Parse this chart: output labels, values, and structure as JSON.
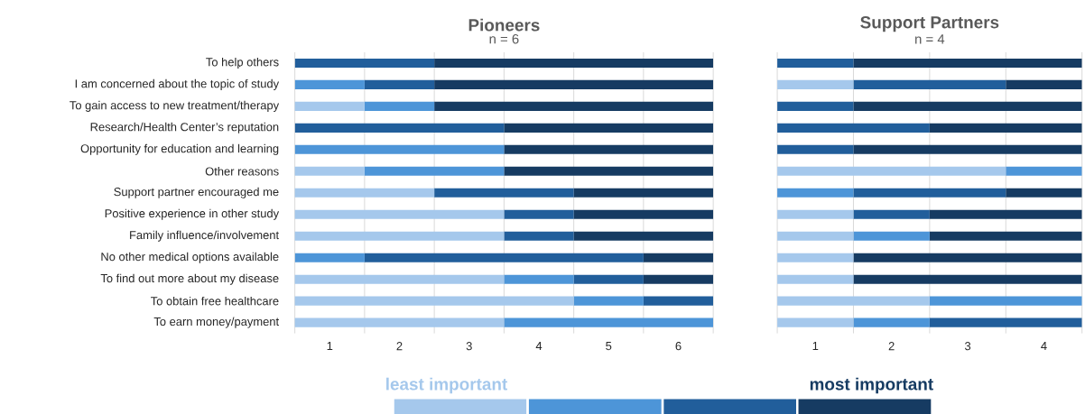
{
  "chart_data": [
    {
      "type": "bar",
      "orientation": "horizontal",
      "stacked": true,
      "title": "Pioneers",
      "subtitle": "n = 6",
      "categories": [
        "To help others",
        "I am concerned about the topic of study",
        "To gain access to new treatment/therapy",
        "Research/Health Center’s reputation",
        "Opportunity for education and learning",
        "Other reasons",
        "Support partner encouraged me",
        "Positive experience in other study",
        "Family influence/involvement",
        "No other medical options available",
        "To find out more about my disease",
        "To obtain free healthcare",
        "To earn money/payment"
      ],
      "series": [
        {
          "name": "least important",
          "color": "#a5c8ec",
          "values": [
            0,
            0,
            1,
            0,
            0,
            1,
            2,
            3,
            3,
            0,
            3,
            4,
            3
          ]
        },
        {
          "color": "#4d95d8",
          "values": [
            0,
            1,
            1,
            0,
            3,
            2,
            0,
            0,
            0,
            1,
            1,
            1,
            3
          ]
        },
        {
          "color": "#215e9b",
          "values": [
            2,
            1,
            0,
            3,
            0,
            0,
            2,
            1,
            1,
            4,
            1,
            1,
            0
          ]
        },
        {
          "name": "most important",
          "color": "#163b62",
          "values": [
            4,
            4,
            4,
            3,
            3,
            3,
            2,
            2,
            2,
            1,
            1,
            0,
            0
          ]
        }
      ],
      "xlim": [
        0,
        6
      ],
      "xticks": [
        {
          "value": 0,
          "label": null
        },
        {
          "value": 0.5,
          "label": "1"
        },
        {
          "value": 1,
          "label": null
        },
        {
          "value": 1.5,
          "label": "2"
        },
        {
          "value": 2,
          "label": null
        },
        {
          "value": 2.5,
          "label": "3"
        },
        {
          "value": 3,
          "label": null
        },
        {
          "value": 3.5,
          "label": "4"
        },
        {
          "value": 4,
          "label": null
        },
        {
          "value": 4.5,
          "label": "5"
        },
        {
          "value": 5,
          "label": null
        },
        {
          "value": 5.5,
          "label": "6"
        },
        {
          "value": 6,
          "label": null
        }
      ],
      "grid": "x",
      "legend": "bottom"
    },
    {
      "type": "bar",
      "orientation": "horizontal",
      "stacked": true,
      "title": "Support Partners",
      "subtitle": "n = 4",
      "categories": [
        null,
        null,
        null,
        null,
        null,
        null,
        null,
        null,
        null,
        null,
        null,
        null,
        null
      ],
      "series": [
        {
          "color": "#a5c8ec",
          "values": [
            0,
            1,
            0,
            0,
            0,
            3,
            0,
            1,
            1,
            1,
            1,
            2,
            1
          ]
        },
        {
          "color": "#4d95d8",
          "values": [
            0,
            0,
            0,
            0,
            0,
            1,
            1,
            0,
            1,
            0,
            0,
            2,
            1
          ]
        },
        {
          "color": "#215e9b",
          "values": [
            1,
            2,
            1,
            2,
            1,
            0,
            2,
            1,
            0,
            0,
            0,
            0,
            2
          ]
        },
        {
          "color": "#163b62",
          "values": [
            3,
            1,
            3,
            2,
            3,
            0,
            1,
            2,
            2,
            3,
            3,
            0,
            0
          ]
        }
      ],
      "xlim": [
        0,
        4
      ],
      "xticks": [
        {
          "value": 0,
          "label": null
        },
        {
          "value": 0.5,
          "label": "1"
        },
        {
          "value": 1,
          "label": null
        },
        {
          "value": 1.5,
          "label": "2"
        },
        {
          "value": 2,
          "label": null
        },
        {
          "value": 2.5,
          "label": "3"
        },
        {
          "value": 3,
          "label": null
        },
        {
          "value": 3.5,
          "label": "4"
        },
        {
          "value": 4,
          "label": null
        }
      ],
      "grid": "x",
      "legend": false,
      "tick_labels": "x"
    }
  ]
}
